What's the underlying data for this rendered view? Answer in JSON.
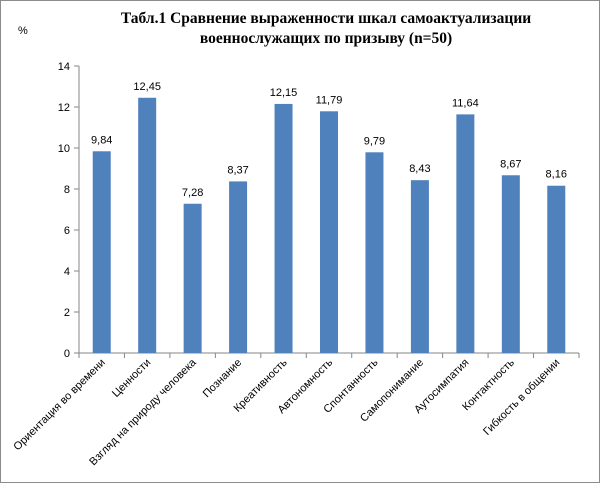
{
  "chart_data": {
    "type": "bar",
    "title": "Табл.1 Сравнение выраженности шкал самоактуализации военнослужащих по призыву (n=50)",
    "ylabel": "%",
    "xlabel": "",
    "categories": [
      "Ориентация во времени",
      "Ценности",
      "Взгляд на природу человека",
      "Познание",
      "Креативность",
      "Автономность",
      "Спонтанность",
      "Самопонимание",
      "Аутосимпатия",
      "Контактность",
      "Гибкость в общении"
    ],
    "values": [
      9.84,
      12.45,
      7.28,
      8.37,
      12.15,
      11.79,
      9.79,
      8.43,
      11.64,
      8.67,
      8.16
    ],
    "value_labels": [
      "9,84",
      "12,45",
      "7,28",
      "8,37",
      "12,15",
      "11,79",
      "9,79",
      "8,43",
      "11,64",
      "8,67",
      "8,16"
    ],
    "ylim": [
      0,
      14
    ],
    "yticks": [
      "0",
      "2",
      "4",
      "6",
      "8",
      "10",
      "12",
      "14"
    ],
    "grid": false,
    "legend": "none",
    "bar_color": "#4f81bd"
  }
}
